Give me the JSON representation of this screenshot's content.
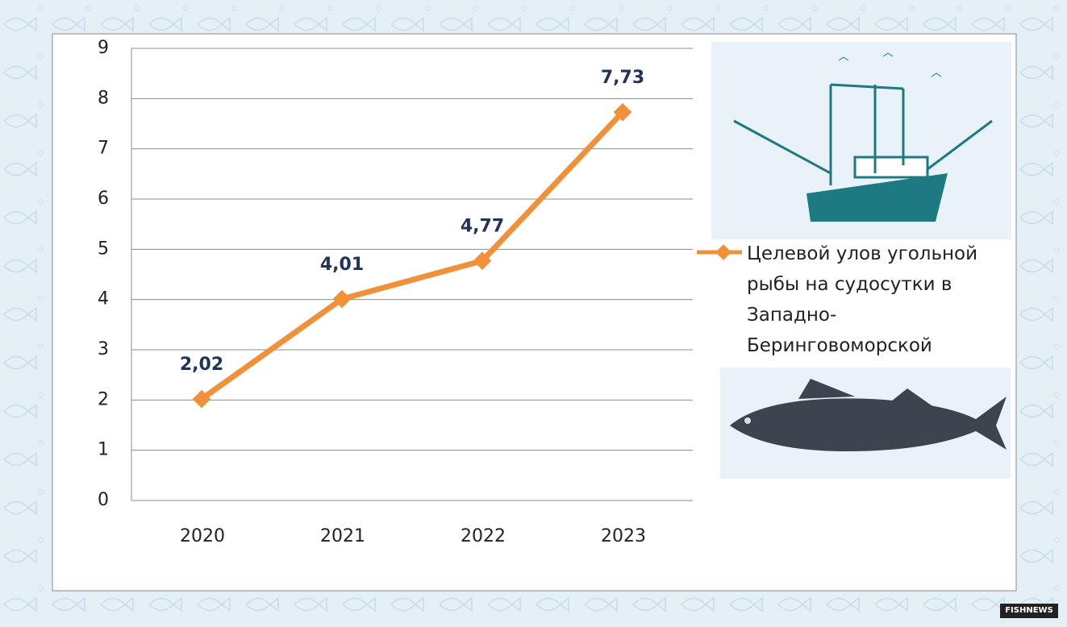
{
  "chart_data": {
    "type": "line",
    "categories": [
      "2020",
      "2021",
      "2022",
      "2023"
    ],
    "series": [
      {
        "name": "Целевой улов угольной рыбы на судосутки в Западно-Беринговоморской",
        "color": "#f0913a",
        "values": [
          2.02,
          4.01,
          4.77,
          7.73
        ],
        "value_labels": [
          "2,02",
          "4,01",
          "4,77",
          "7,73"
        ]
      }
    ],
    "ylim": [
      0,
      9
    ],
    "yticks": [
      0,
      1,
      2,
      3,
      4,
      5,
      6,
      7,
      8,
      9
    ],
    "grid": true,
    "legend": "right"
  },
  "watermark": "FISHNEWS"
}
